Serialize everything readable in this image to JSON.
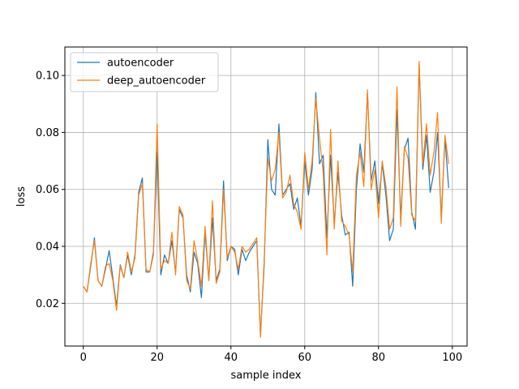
{
  "chart_data": {
    "type": "line",
    "title": "",
    "xlabel": "sample index",
    "ylabel": "loss",
    "xlim": [
      -5,
      104
    ],
    "ylim": [
      0.005,
      0.11
    ],
    "xticks": [
      0,
      20,
      40,
      60,
      80,
      100
    ],
    "yticks": [
      0.02,
      0.04,
      0.06,
      0.08,
      0.1
    ],
    "ytick_labels": [
      "0.02",
      "0.04",
      "0.06",
      "0.08",
      "0.10"
    ],
    "grid": true,
    "legend": "top-left",
    "series": [
      {
        "name": "autoencoder",
        "color": "#1f77b4",
        "x": [
          0,
          1,
          2,
          3,
          4,
          5,
          6,
          7,
          8,
          9,
          10,
          11,
          12,
          13,
          14,
          15,
          16,
          17,
          18,
          19,
          20,
          21,
          22,
          23,
          24,
          25,
          26,
          27,
          28,
          29,
          30,
          31,
          32,
          33,
          34,
          35,
          36,
          37,
          38,
          39,
          40,
          41,
          42,
          43,
          44,
          45,
          46,
          47,
          48,
          49,
          50,
          51,
          52,
          53,
          54,
          55,
          56,
          57,
          58,
          59,
          60,
          61,
          62,
          63,
          64,
          65,
          66,
          67,
          68,
          69,
          70,
          71,
          72,
          73,
          74,
          75,
          76,
          77,
          78,
          79,
          80,
          81,
          82,
          83,
          84,
          85,
          86,
          87,
          88,
          89,
          90,
          91,
          92,
          93,
          94,
          95,
          96,
          97,
          98,
          99
        ],
        "values": [
          0.026,
          0.024,
          0.033,
          0.043,
          0.028,
          0.026,
          0.032,
          0.0385,
          0.029,
          0.019,
          0.0335,
          0.029,
          0.037,
          0.03,
          0.037,
          0.059,
          0.064,
          0.031,
          0.031,
          0.038,
          0.073,
          0.03,
          0.037,
          0.034,
          0.042,
          0.031,
          0.053,
          0.05,
          0.03,
          0.024,
          0.038,
          0.034,
          0.022,
          0.045,
          0.028,
          0.05,
          0.028,
          0.032,
          0.063,
          0.035,
          0.04,
          0.039,
          0.03,
          0.039,
          0.035,
          0.038,
          0.04,
          0.042,
          0.009,
          0.033,
          0.0775,
          0.06,
          0.058,
          0.083,
          0.058,
          0.06,
          0.062,
          0.053,
          0.057,
          0.047,
          0.07,
          0.058,
          0.067,
          0.094,
          0.069,
          0.072,
          0.043,
          0.072,
          0.048,
          0.066,
          0.051,
          0.044,
          0.045,
          0.026,
          0.06,
          0.076,
          0.066,
          0.094,
          0.063,
          0.07,
          0.055,
          0.069,
          0.058,
          0.042,
          0.046,
          0.088,
          0.05,
          0.074,
          0.078,
          0.052,
          0.046,
          0.104,
          0.067,
          0.079,
          0.059,
          0.066,
          0.08,
          0.05,
          0.078,
          0.0605
        ]
      },
      {
        "name": "deep_autoencoder",
        "color": "#ff7f0e",
        "x": [
          0,
          1,
          2,
          3,
          4,
          5,
          6,
          7,
          8,
          9,
          10,
          11,
          12,
          13,
          14,
          15,
          16,
          17,
          18,
          19,
          20,
          21,
          22,
          23,
          24,
          25,
          26,
          27,
          28,
          29,
          30,
          31,
          32,
          33,
          34,
          35,
          36,
          37,
          38,
          39,
          40,
          41,
          42,
          43,
          44,
          45,
          46,
          47,
          48,
          49,
          50,
          51,
          52,
          53,
          54,
          55,
          56,
          57,
          58,
          59,
          60,
          61,
          62,
          63,
          64,
          65,
          66,
          67,
          68,
          69,
          70,
          71,
          72,
          73,
          74,
          75,
          76,
          77,
          78,
          79,
          80,
          81,
          82,
          83,
          84,
          85,
          86,
          87,
          88,
          89,
          90,
          91,
          92,
          93,
          94,
          95,
          96,
          97,
          98,
          99
        ],
        "values": [
          0.026,
          0.024,
          0.034,
          0.042,
          0.028,
          0.026,
          0.033,
          0.034,
          0.028,
          0.0175,
          0.033,
          0.029,
          0.038,
          0.031,
          0.036,
          0.058,
          0.062,
          0.032,
          0.031,
          0.037,
          0.083,
          0.032,
          0.035,
          0.034,
          0.045,
          0.03,
          0.054,
          0.051,
          0.028,
          0.025,
          0.042,
          0.035,
          0.026,
          0.047,
          0.028,
          0.056,
          0.027,
          0.031,
          0.06,
          0.036,
          0.04,
          0.038,
          0.032,
          0.04,
          0.038,
          0.039,
          0.041,
          0.043,
          0.008,
          0.035,
          0.071,
          0.063,
          0.067,
          0.08,
          0.057,
          0.059,
          0.065,
          0.055,
          0.052,
          0.046,
          0.073,
          0.06,
          0.07,
          0.092,
          0.078,
          0.066,
          0.037,
          0.081,
          0.046,
          0.07,
          0.049,
          0.047,
          0.044,
          0.031,
          0.065,
          0.073,
          0.061,
          0.095,
          0.06,
          0.067,
          0.05,
          0.07,
          0.061,
          0.046,
          0.05,
          0.096,
          0.047,
          0.075,
          0.071,
          0.051,
          0.049,
          0.105,
          0.069,
          0.083,
          0.065,
          0.073,
          0.087,
          0.048,
          0.079,
          0.069
        ]
      }
    ]
  }
}
